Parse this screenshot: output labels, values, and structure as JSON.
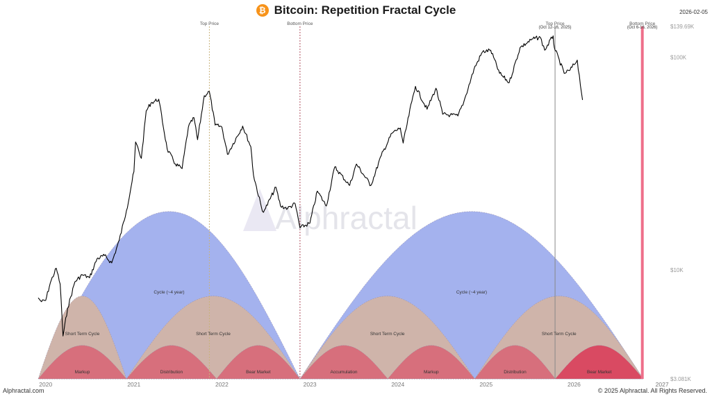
{
  "header": {
    "title": "Bitcoin: Repetition Fractal Cycle",
    "icon": "bitcoin-icon",
    "date_stamp": "2026-02-05"
  },
  "footer": {
    "source": "Alphractal.com",
    "copyright": "© 2025 Alphractal. All Rights Reserved."
  },
  "watermark": "Alphractal",
  "colors": {
    "price_line": "#000000",
    "long_cycle": "#a4b2ee",
    "short_cycle": "#cfb4aa",
    "phase": "#d76f7c",
    "bear_market_highlight": "#d94a62",
    "top_price_line": "#c8b27a",
    "bottom_price_line": "#b04f5e",
    "projection_line": "#888888",
    "projection_bottom_band": "#ee6f8a"
  },
  "chart_data": {
    "type": "line",
    "yscale": "log",
    "ylim": [
      3081,
      139690
    ],
    "xlim": [
      "2019-12-01",
      "2027-01-15"
    ],
    "y_tick_labels": [
      {
        "value": 139690,
        "label": "$139.69K"
      },
      {
        "value": 100000,
        "label": "$100K"
      },
      {
        "value": 10000,
        "label": "$10K"
      },
      {
        "value": 3081,
        "label": "$3.081K"
      }
    ],
    "x_tick_labels": [
      "2020",
      "2021",
      "2022",
      "2023",
      "2024",
      "2025",
      "2026",
      "2027"
    ],
    "series": [
      {
        "name": "BTC price",
        "points": [
          [
            "2019-12-01",
            7400
          ],
          [
            "2019-12-15",
            7100
          ],
          [
            "2020-01-01",
            7200
          ],
          [
            "2020-01-20",
            8700
          ],
          [
            "2020-02-14",
            10200
          ],
          [
            "2020-03-01",
            8600
          ],
          [
            "2020-03-13",
            4900
          ],
          [
            "2020-04-01",
            6600
          ],
          [
            "2020-05-01",
            8800
          ],
          [
            "2020-06-01",
            9500
          ],
          [
            "2020-07-01",
            9200
          ],
          [
            "2020-08-01",
            11300
          ],
          [
            "2020-09-01",
            11700
          ],
          [
            "2020-10-01",
            10800
          ],
          [
            "2020-11-01",
            13800
          ],
          [
            "2020-12-01",
            19000
          ],
          [
            "2021-01-01",
            29000
          ],
          [
            "2021-01-08",
            40000
          ],
          [
            "2021-02-01",
            33500
          ],
          [
            "2021-02-21",
            56000
          ],
          [
            "2021-03-13",
            61000
          ],
          [
            "2021-04-14",
            63500
          ],
          [
            "2021-05-19",
            37000
          ],
          [
            "2021-06-22",
            31500
          ],
          [
            "2021-07-20",
            30000
          ],
          [
            "2021-08-15",
            47000
          ],
          [
            "2021-09-07",
            52000
          ],
          [
            "2021-09-22",
            41000
          ],
          [
            "2021-10-20",
            66000
          ],
          [
            "2021-11-10",
            69000
          ],
          [
            "2021-12-04",
            48000
          ],
          [
            "2022-01-01",
            47000
          ],
          [
            "2022-01-24",
            35000
          ],
          [
            "2022-03-28",
            47500
          ],
          [
            "2022-05-01",
            38000
          ],
          [
            "2022-05-12",
            28000
          ],
          [
            "2022-06-18",
            18900
          ],
          [
            "2022-07-01",
            19500
          ],
          [
            "2022-08-13",
            24500
          ],
          [
            "2022-09-01",
            20000
          ],
          [
            "2022-10-01",
            19500
          ],
          [
            "2022-11-01",
            20500
          ],
          [
            "2022-11-21",
            15800
          ],
          [
            "2023-01-01",
            16600
          ],
          [
            "2023-02-01",
            23500
          ],
          [
            "2023-03-10",
            20000
          ],
          [
            "2023-04-14",
            30500
          ],
          [
            "2023-06-15",
            25000
          ],
          [
            "2023-07-13",
            31500
          ],
          [
            "2023-09-11",
            25000
          ],
          [
            "2023-10-24",
            34500
          ],
          [
            "2023-12-08",
            44000
          ],
          [
            "2024-01-11",
            46500
          ],
          [
            "2024-01-23",
            39500
          ],
          [
            "2024-02-28",
            62000
          ],
          [
            "2024-03-14",
            73000
          ],
          [
            "2024-05-01",
            57000
          ],
          [
            "2024-06-07",
            71500
          ],
          [
            "2024-07-05",
            54000
          ],
          [
            "2024-08-05",
            53500
          ],
          [
            "2024-09-06",
            53000
          ],
          [
            "2024-10-01",
            62000
          ],
          [
            "2024-11-12",
            88000
          ],
          [
            "2024-12-17",
            106000
          ],
          [
            "2025-01-20",
            108000
          ],
          [
            "2025-02-26",
            84000
          ],
          [
            "2025-04-07",
            76000
          ],
          [
            "2025-05-22",
            111000
          ],
          [
            "2025-07-14",
            122000
          ],
          [
            "2025-08-14",
            124000
          ],
          [
            "2025-09-01",
            108000
          ],
          [
            "2025-10-06",
            126000
          ],
          [
            "2025-10-11",
            111000
          ],
          [
            "2025-11-21",
            84000
          ],
          [
            "2025-12-15",
            87000
          ],
          [
            "2026-01-14",
            97000
          ],
          [
            "2026-02-05",
            63000
          ]
        ]
      }
    ],
    "long_cycles": [
      {
        "label": "Cycle (~4 year)",
        "start": "2019-12-01",
        "end": "2022-11-21"
      },
      {
        "label": "Cycle (~4 year)",
        "start": "2022-11-21",
        "end": "2026-10-15"
      }
    ],
    "short_cycles": [
      {
        "label": "Short Term Cycle",
        "start": "2019-12-01",
        "end": "2020-12-01"
      },
      {
        "label": "Short Term Cycle",
        "start": "2020-12-01",
        "end": "2022-11-21"
      },
      {
        "label": "Short Term Cycle",
        "start": "2022-11-21",
        "end": "2024-11-15"
      },
      {
        "label": "Short Term Cycle",
        "start": "2024-11-15",
        "end": "2026-10-15"
      }
    ],
    "phases": [
      {
        "label": "Markup",
        "start": "2019-12-01",
        "end": "2020-12-01"
      },
      {
        "label": "Distribution",
        "start": "2020-12-01",
        "end": "2021-12-10"
      },
      {
        "label": "Bear Market",
        "start": "2021-12-10",
        "end": "2022-11-21"
      },
      {
        "label": "Accumulation",
        "start": "2022-11-21",
        "end": "2023-11-20"
      },
      {
        "label": "Markup",
        "start": "2023-11-20",
        "end": "2024-11-15"
      },
      {
        "label": "Distribution",
        "start": "2024-11-15",
        "end": "2025-10-15"
      },
      {
        "label": "Bear Market",
        "start": "2025-10-15",
        "end": "2026-10-15",
        "highlight": true
      }
    ],
    "markers": [
      {
        "label": "Top Price",
        "date": "2021-11-10",
        "style": "top"
      },
      {
        "label": "Bottom Price",
        "date": "2022-11-21",
        "style": "bottom"
      },
      {
        "label": "Top Price",
        "sublabel": "(Oct 12-16, 2025)",
        "date": "2025-10-14",
        "style": "projection"
      },
      {
        "label": "Bottom Price",
        "sublabel": "(Oct 6-16, 2026)",
        "date": "2026-10-11",
        "style": "projection-bottom"
      }
    ]
  }
}
